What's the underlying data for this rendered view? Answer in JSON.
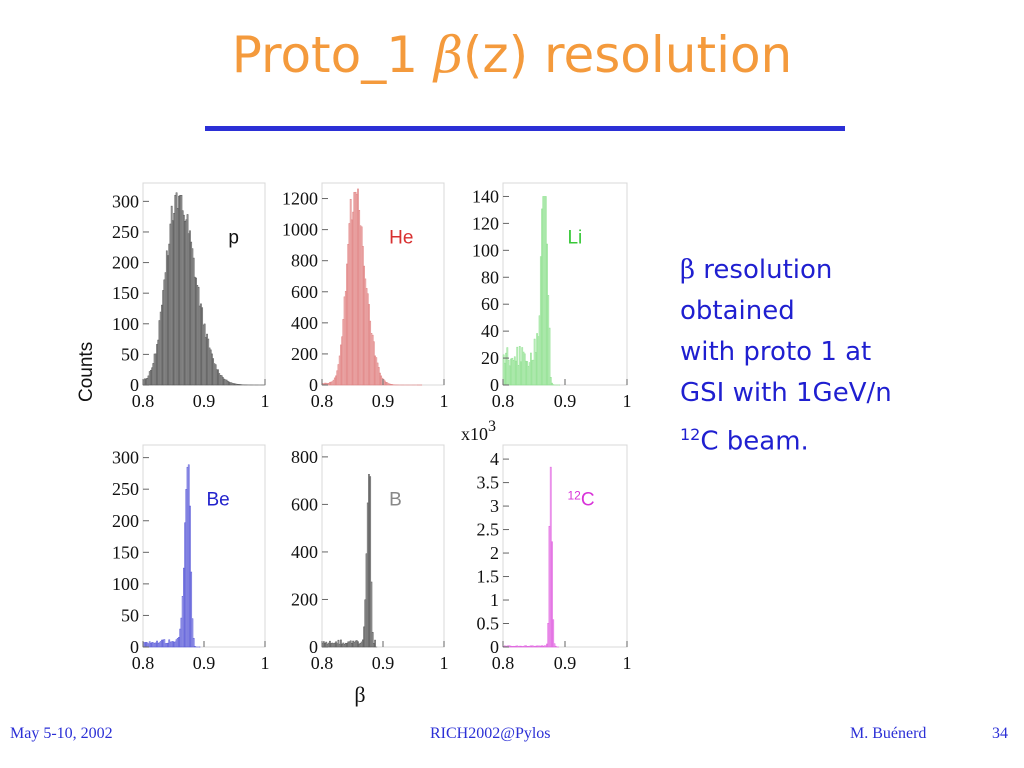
{
  "title": {
    "prefix": "Proto_1 ",
    "beta": "β",
    "suffix": "(z) resolution"
  },
  "colors": {
    "title": "#f49a3c",
    "rule": "#2b2fd6",
    "text": "#1f1fd0",
    "footer": "#2b2fd6"
  },
  "axes": {
    "y_label": "Counts",
    "x_label": "β",
    "exp_label_base": "x10",
    "exp_label_power": "3"
  },
  "description": {
    "beta": "β",
    "line1": " resolution",
    "line2": "obtained",
    "line3": "with proto 1 at",
    "line4": "GSI with 1GeV/n",
    "line5_sup": "12",
    "line5": "C beam."
  },
  "footer": {
    "date": "May 5-10, 2002",
    "conference": "RICH2002@Pylos",
    "author": "M. Buénerd",
    "page": "34"
  },
  "chart_data": [
    {
      "type": "histogram",
      "label": "p",
      "color": "#555555",
      "label_color": "#111111",
      "xlim": [
        0.8,
        1
      ],
      "xticks": [
        "0.8",
        "0.9",
        "1"
      ],
      "ylim": [
        0,
        330
      ],
      "yticks": [
        0,
        50,
        100,
        150,
        200,
        250,
        300
      ],
      "yticklabels": [
        "0",
        "50",
        "100",
        "150",
        "200",
        "250",
        "300"
      ],
      "peak_x": 0.855,
      "peak_y": 310,
      "sigma_left": 0.018,
      "sigma_right": 0.03,
      "tail": 4
    },
    {
      "type": "histogram",
      "label": "He",
      "color": "#e08080",
      "label_color": "#d83030",
      "xlim": [
        0.8,
        1
      ],
      "xticks": [
        "0.8",
        "0.9",
        "1"
      ],
      "ylim": [
        0,
        1300
      ],
      "yticks": [
        0,
        200,
        400,
        600,
        800,
        1000,
        1200
      ],
      "yticklabels": [
        "0",
        "200",
        "400",
        "600",
        "800",
        "1000",
        "1200"
      ],
      "peak_x": 0.853,
      "peak_y": 1240,
      "sigma_left": 0.012,
      "sigma_right": 0.018,
      "tail": 10
    },
    {
      "type": "histogram",
      "label": "Li",
      "color": "#8ee08e",
      "label_color": "#38c838",
      "xlim": [
        0.8,
        1
      ],
      "xticks": [
        "0.8",
        "0.9",
        "1"
      ],
      "ylim": [
        0,
        150
      ],
      "yticks": [
        0,
        20,
        40,
        60,
        80,
        100,
        120,
        140
      ],
      "yticklabels": [
        "0",
        "20",
        "40",
        "60",
        "80",
        "100",
        "120",
        "140"
      ],
      "peak_x": 0.867,
      "peak_y": 140,
      "sigma_left": 0.005,
      "sigma_right": 0.004,
      "tail": 22
    },
    {
      "type": "histogram",
      "label": "Be",
      "color": "#5a5ad8",
      "label_color": "#2222cc",
      "xlim": [
        0.8,
        1
      ],
      "xticks": [
        "0.8",
        "0.9",
        "1"
      ],
      "ylim": [
        0,
        320
      ],
      "yticks": [
        0,
        50,
        100,
        150,
        200,
        250,
        300
      ],
      "yticklabels": [
        "0",
        "50",
        "100",
        "150",
        "200",
        "250",
        "300"
      ],
      "peak_x": 0.875,
      "peak_y": 290,
      "sigma_left": 0.006,
      "sigma_right": 0.003,
      "tail": 8
    },
    {
      "type": "histogram",
      "label": "B",
      "color": "#555555",
      "label_color": "#888888",
      "xlim": [
        0.8,
        1
      ],
      "xticks": [
        "0.8",
        "0.9",
        "1"
      ],
      "ylim": [
        0,
        850
      ],
      "yticks": [
        0,
        200,
        400,
        600,
        800
      ],
      "yticklabels": [
        "0",
        "200",
        "400",
        "600",
        "800"
      ],
      "peak_x": 0.878,
      "peak_y": 760,
      "sigma_left": 0.004,
      "sigma_right": 0.002,
      "tail": 20
    },
    {
      "type": "histogram",
      "label_sup": "12",
      "label": "C",
      "color": "#e060e0",
      "label_color": "#d832d8",
      "xlim": [
        0.8,
        1
      ],
      "xticks": [
        "0.8",
        "0.9",
        "1"
      ],
      "ylim": [
        0,
        4.3
      ],
      "yticks": [
        0,
        0.5,
        1,
        1.5,
        2,
        2.5,
        3,
        3.5,
        4
      ],
      "yticklabels": [
        "0",
        "0.5",
        "1",
        "1.5",
        "2",
        "2.5",
        "3",
        "3.5",
        "4"
      ],
      "peak_x": 0.877,
      "peak_y": 3.9,
      "sigma_left": 0.002,
      "sigma_right": 0.002,
      "tail": 0.02
    }
  ]
}
